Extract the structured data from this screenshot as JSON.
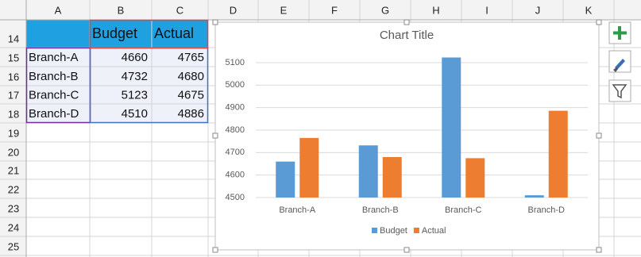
{
  "column_headers": [
    "A",
    "B",
    "C",
    "D",
    "E",
    "F",
    "G",
    "H",
    "I",
    "J",
    "K"
  ],
  "row_headers": [
    "14",
    "15",
    "16",
    "17",
    "18",
    "19",
    "20",
    "21",
    "22",
    "23",
    "24",
    "25"
  ],
  "table": {
    "header": [
      "Budget",
      "Actual"
    ],
    "rows": [
      [
        "Branch-A",
        4660,
        4765
      ],
      [
        "Branch-B",
        4732,
        4680
      ],
      [
        "Branch-C",
        5123,
        4675
      ],
      [
        "Branch-D",
        4510,
        4886
      ]
    ]
  },
  "chart_data": {
    "type": "bar",
    "title": "Chart Title",
    "categories": [
      "Branch-A",
      "Branch-B",
      "Branch-C",
      "Branch-D"
    ],
    "series": [
      {
        "name": "Budget",
        "color": "#5b9bd5",
        "values": [
          4660,
          4732,
          5123,
          4510
        ]
      },
      {
        "name": "Actual",
        "color": "#ed7d31",
        "values": [
          4765,
          4680,
          4675,
          4886
        ]
      }
    ],
    "ylim": [
      4500,
      5100
    ],
    "yticks": [
      4500,
      4600,
      4700,
      4800,
      4900,
      5000,
      5100
    ],
    "grid": true,
    "legend": "bottom"
  }
}
